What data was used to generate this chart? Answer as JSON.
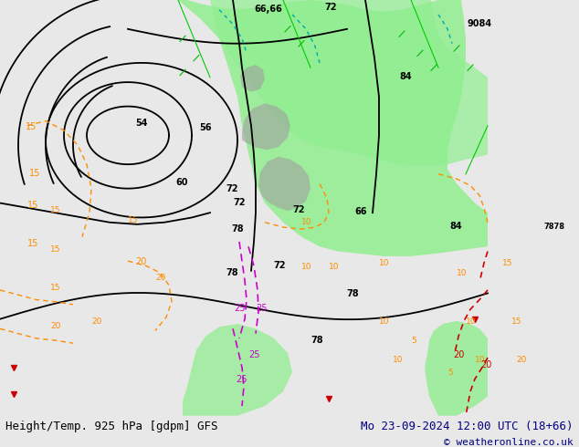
{
  "title_left": "Height/Temp. 925 hPa [gdpm] GFS",
  "title_right": "Mo 23-09-2024 12:00 UTC (18+66)",
  "copyright": "© weatheronline.co.uk",
  "background_color": "#e8e8e8",
  "map_bg_color": "#d8d8d8",
  "fig_width": 6.34,
  "fig_height": 4.9,
  "dpi": 100,
  "title_fontsize": 9,
  "copyright_fontsize": 8,
  "title_color": "#000080",
  "copyright_color": "#000080"
}
